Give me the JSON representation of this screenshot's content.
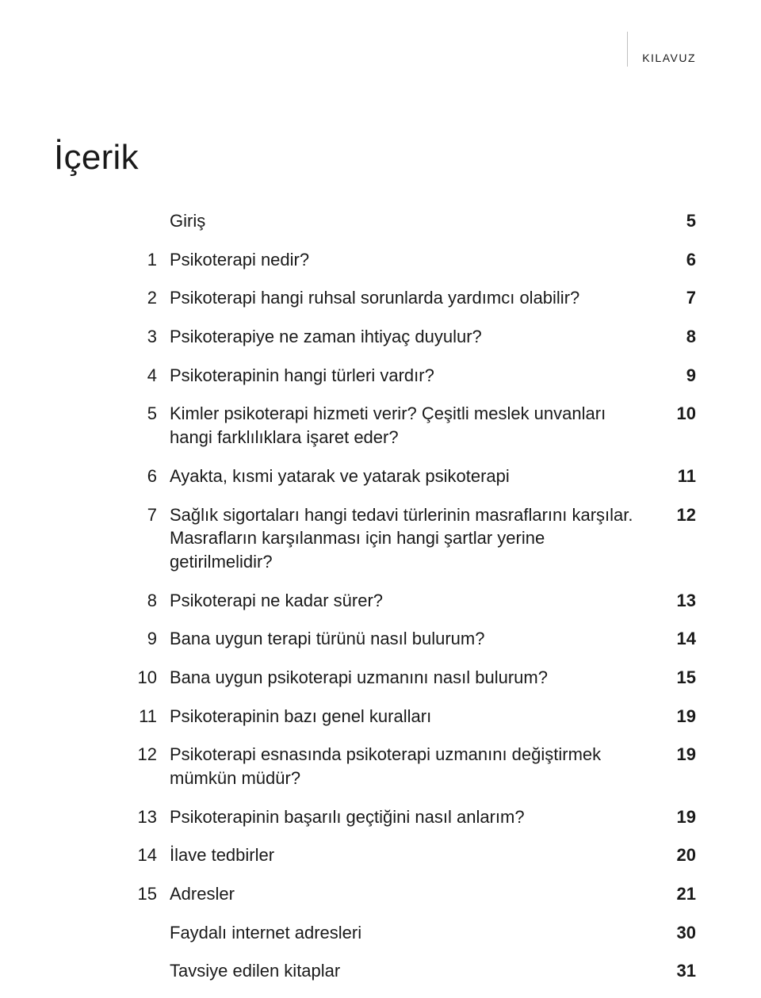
{
  "header": {
    "label": "KILAVUZ"
  },
  "title": "İçerik",
  "toc": [
    {
      "num": "",
      "text": "Giriş",
      "page": "5"
    },
    {
      "num": "1",
      "text": "Psikoterapi nedir?",
      "page": "6"
    },
    {
      "num": "2",
      "text": "Psikoterapi hangi ruhsal sorunlarda yardımcı olabilir?",
      "page": "7"
    },
    {
      "num": "3",
      "text": "Psikoterapiye ne zaman ihtiyaç duyulur?",
      "page": "8"
    },
    {
      "num": "4",
      "text": "Psikoterapinin hangi türleri vardır?",
      "page": "9"
    },
    {
      "num": "5",
      "text": "Kimler psikoterapi hizmeti verir? Çeşitli meslek unvanları hangi farklılıklara işaret eder?",
      "page": "10"
    },
    {
      "num": "6",
      "text": "Ayakta, kısmi yatarak ve yatarak psikoterapi",
      "page": "11"
    },
    {
      "num": "7",
      "text": "Sağlık sigortaları hangi tedavi türlerinin masraflarını karşılar. Masrafların karşılanması için hangi şartlar yerine getirilmelidir?",
      "page": "12"
    },
    {
      "num": "8",
      "text": "Psikoterapi ne kadar sürer?",
      "page": "13"
    },
    {
      "num": "9",
      "text": "Bana uygun terapi türünü nasıl bulurum?",
      "page": "14"
    },
    {
      "num": "10",
      "text": "Bana uygun psikoterapi uzmanını nasıl bulurum?",
      "page": "15"
    },
    {
      "num": "11",
      "text": "Psikoterapinin bazı genel kuralları",
      "page": "19"
    },
    {
      "num": "12",
      "text": "Psikoterapi esnasında psikoterapi uzmanını değiştirmek mümkün müdür?",
      "page": "19"
    },
    {
      "num": "13",
      "text": "Psikoterapinin başarılı geçtiğini nasıl anlarım?",
      "page": "19"
    },
    {
      "num": "14",
      "text": "İlave tedbirler",
      "page": "20"
    },
    {
      "num": "15",
      "text": "Adresler",
      "page": "21"
    },
    {
      "num": "",
      "text": "Faydalı internet adresleri",
      "page": "30"
    },
    {
      "num": "",
      "text": "Tavsiye edilen kitaplar",
      "page": "31"
    }
  ],
  "colors": {
    "text": "#1a1a1a",
    "divider": "#c0bfbf",
    "background": "#ffffff"
  },
  "typography": {
    "header_fontsize": 14,
    "title_fontsize": 44,
    "body_fontsize": 22,
    "page_fontweight": 700,
    "body_fontweight": 300
  }
}
